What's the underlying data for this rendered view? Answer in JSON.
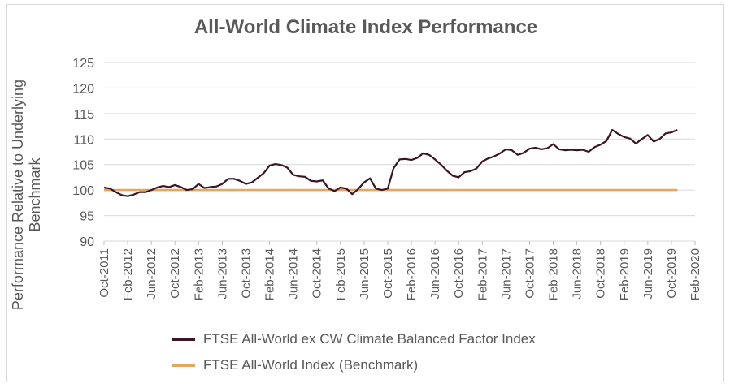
{
  "chart_data": {
    "type": "line",
    "title": "All-World Climate Index Performance",
    "ylabel": "Performance Relative to Underlying Benchmark",
    "xlabel": "",
    "ylim": [
      90,
      125
    ],
    "yticks": [
      "90",
      "95",
      "100",
      "105",
      "110",
      "115",
      "120",
      "125"
    ],
    "xticks": [
      "Oct-2011",
      "Feb-2012",
      "Jun-2012",
      "Oct-2012",
      "Feb-2013",
      "Jun-2013",
      "Oct-2013",
      "Feb-2014",
      "Jun-2014",
      "Oct-2014",
      "Feb-2015",
      "Jun-2015",
      "Oct-2015",
      "Feb-2016",
      "Jun-2016",
      "Oct-2016",
      "Feb-2017",
      "Jun-2017",
      "Oct-2017",
      "Feb-2018",
      "Jun-2018",
      "Oct-2018",
      "Feb-2019",
      "Jun-2019",
      "Oct-2019",
      "Feb-2020"
    ],
    "grid": true,
    "legend_position": "bottom",
    "series": [
      {
        "name": "FTSE All-World ex CW Climate Balanced Factor Index",
        "color": "#3b1526",
        "points": [
          [
            0,
            100.5
          ],
          [
            1,
            100.3
          ],
          [
            2,
            99.6
          ],
          [
            3,
            99.0
          ],
          [
            4,
            98.8
          ],
          [
            5,
            99.1
          ],
          [
            6,
            99.6
          ],
          [
            7,
            99.6
          ],
          [
            8,
            100.0
          ],
          [
            9,
            100.5
          ],
          [
            10,
            100.8
          ],
          [
            11,
            100.6
          ],
          [
            12,
            101.0
          ],
          [
            13,
            100.6
          ],
          [
            14,
            100.0
          ],
          [
            15,
            100.2
          ],
          [
            16,
            101.2
          ],
          [
            17,
            100.4
          ],
          [
            18,
            100.6
          ],
          [
            19,
            100.7
          ],
          [
            20,
            101.2
          ],
          [
            21,
            102.2
          ],
          [
            22,
            102.2
          ],
          [
            23,
            101.8
          ],
          [
            24,
            101.2
          ],
          [
            25,
            101.5
          ],
          [
            26,
            102.4
          ],
          [
            27,
            103.3
          ],
          [
            28,
            104.8
          ],
          [
            29,
            105.1
          ],
          [
            30,
            104.9
          ],
          [
            31,
            104.4
          ],
          [
            32,
            103.0
          ],
          [
            33,
            102.7
          ],
          [
            34,
            102.6
          ],
          [
            35,
            101.8
          ],
          [
            36,
            101.7
          ],
          [
            37,
            101.9
          ],
          [
            38,
            100.3
          ],
          [
            39,
            99.8
          ],
          [
            40,
            100.5
          ],
          [
            41,
            100.3
          ],
          [
            42,
            99.2
          ],
          [
            43,
            100.2
          ],
          [
            44,
            101.5
          ],
          [
            45,
            102.3
          ],
          [
            46,
            100.3
          ],
          [
            47,
            100.0
          ],
          [
            48,
            100.3
          ],
          [
            49,
            104.3
          ],
          [
            50,
            106.0
          ],
          [
            51,
            106.1
          ],
          [
            52,
            105.9
          ],
          [
            53,
            106.3
          ],
          [
            54,
            107.2
          ],
          [
            55,
            106.9
          ],
          [
            56,
            106.0
          ],
          [
            57,
            105.0
          ],
          [
            58,
            103.8
          ],
          [
            59,
            102.8
          ],
          [
            60,
            102.5
          ],
          [
            61,
            103.5
          ],
          [
            62,
            103.7
          ],
          [
            63,
            104.2
          ],
          [
            64,
            105.6
          ],
          [
            65,
            106.2
          ],
          [
            66,
            106.6
          ],
          [
            67,
            107.2
          ],
          [
            68,
            108.0
          ],
          [
            69,
            107.8
          ],
          [
            70,
            106.9
          ],
          [
            71,
            107.3
          ],
          [
            72,
            108.1
          ],
          [
            73,
            108.3
          ],
          [
            74,
            108.0
          ],
          [
            75,
            108.2
          ],
          [
            76,
            109.0
          ],
          [
            77,
            108.0
          ],
          [
            78,
            107.8
          ],
          [
            79,
            107.9
          ],
          [
            80,
            107.8
          ],
          [
            81,
            107.9
          ],
          [
            82,
            107.5
          ],
          [
            83,
            108.4
          ],
          [
            84,
            108.9
          ],
          [
            85,
            109.6
          ],
          [
            86,
            111.8
          ],
          [
            87,
            111.0
          ],
          [
            88,
            110.4
          ],
          [
            89,
            110.1
          ],
          [
            90,
            109.1
          ],
          [
            91,
            110.0
          ],
          [
            92,
            110.8
          ],
          [
            93,
            109.5
          ],
          [
            94,
            110.0
          ],
          [
            95,
            111.1
          ],
          [
            96,
            111.3
          ],
          [
            97,
            111.8
          ]
        ]
      },
      {
        "name": "FTSE All-World Index (Benchmark)",
        "color": "#e5a75a",
        "points": [
          [
            0,
            100
          ],
          [
            97,
            100
          ]
        ]
      }
    ]
  }
}
